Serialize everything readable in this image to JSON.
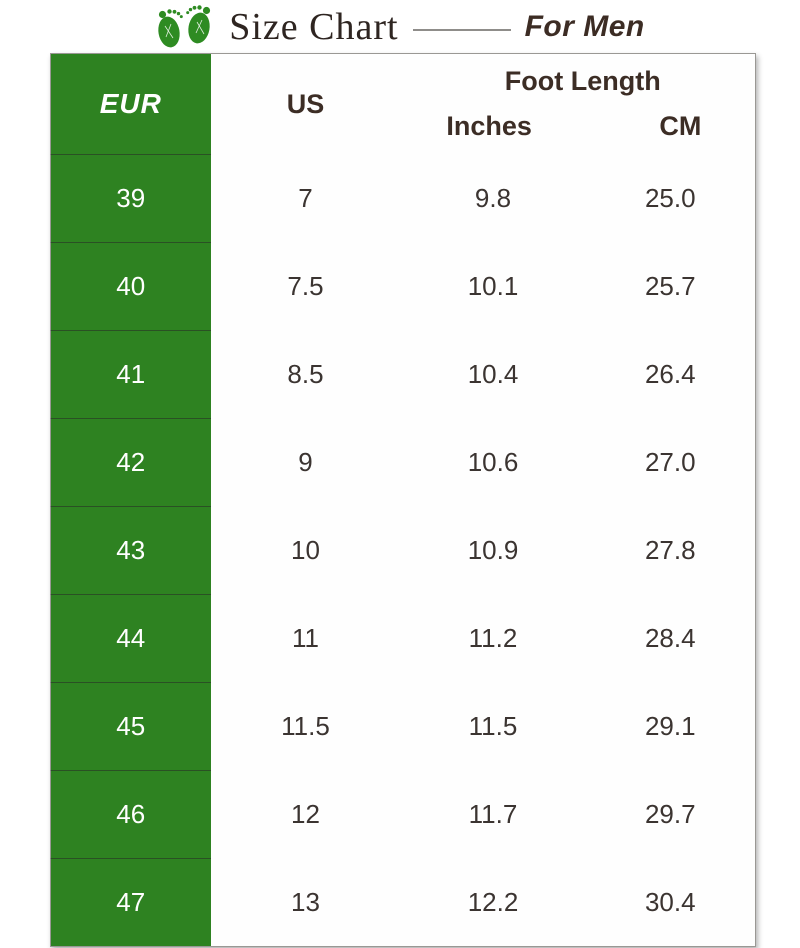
{
  "header": {
    "title": "Size Chart",
    "subtitle": "For Men",
    "icon": "footprints-icon"
  },
  "colors": {
    "accent_green": "#2e8221",
    "header_text": "#3c2d25",
    "body_text": "#3b3431",
    "title_text": "#2e2521"
  },
  "chart_data": {
    "type": "table",
    "title": "Size Chart For Men",
    "columns": [
      "EUR",
      "US",
      "Foot Length Inches",
      "Foot Length CM"
    ],
    "rows": [
      {
        "eur": "39",
        "us": "7",
        "inches": "9.8",
        "cm": "25.0"
      },
      {
        "eur": "40",
        "us": "7.5",
        "inches": "10.1",
        "cm": "25.7"
      },
      {
        "eur": "41",
        "us": "8.5",
        "inches": "10.4",
        "cm": "26.4"
      },
      {
        "eur": "42",
        "us": "9",
        "inches": "10.6",
        "cm": "27.0"
      },
      {
        "eur": "43",
        "us": "10",
        "inches": "10.9",
        "cm": "27.8"
      },
      {
        "eur": "44",
        "us": "11",
        "inches": "11.2",
        "cm": "28.4"
      },
      {
        "eur": "45",
        "us": "11.5",
        "inches": "11.5",
        "cm": "29.1"
      },
      {
        "eur": "46",
        "us": "12",
        "inches": "11.7",
        "cm": "29.7"
      },
      {
        "eur": "47",
        "us": "13",
        "inches": "12.2",
        "cm": "30.4"
      }
    ]
  },
  "table_headers": {
    "eur": "EUR",
    "us": "US",
    "foot_length": "Foot Length",
    "inches": "Inches",
    "cm": "CM"
  }
}
